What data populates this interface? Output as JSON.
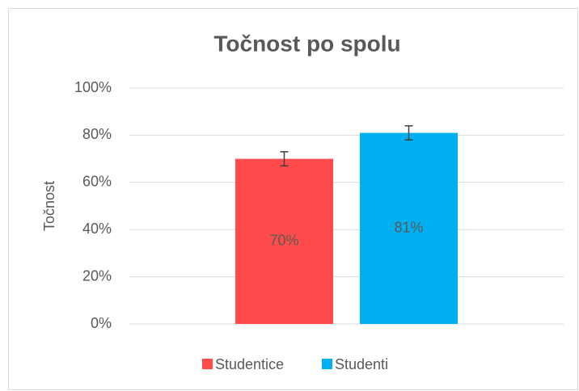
{
  "chart_data": {
    "type": "bar",
    "title": "Točnost po spolu",
    "y_label": "Točnost",
    "categories": [
      null
    ],
    "series": [
      {
        "name": "Studentice",
        "color": "#ff4b4b",
        "values": [
          70
        ],
        "value_labels": [
          "70%"
        ],
        "errors": [
          3
        ]
      },
      {
        "name": "Studenti",
        "color": "#00b0f0",
        "values": [
          81
        ],
        "value_labels": [
          "81%"
        ],
        "errors": [
          3
        ]
      }
    ],
    "ylim": [
      0,
      100
    ],
    "yticks": [
      {
        "value": 0,
        "label": "0%"
      },
      {
        "value": 20,
        "label": "20%"
      },
      {
        "value": 40,
        "label": "40%"
      },
      {
        "value": 60,
        "label": "60%"
      },
      {
        "value": 80,
        "label": "80%"
      },
      {
        "value": 100,
        "label": "100%"
      }
    ],
    "grid": true,
    "legend": "bottom"
  }
}
